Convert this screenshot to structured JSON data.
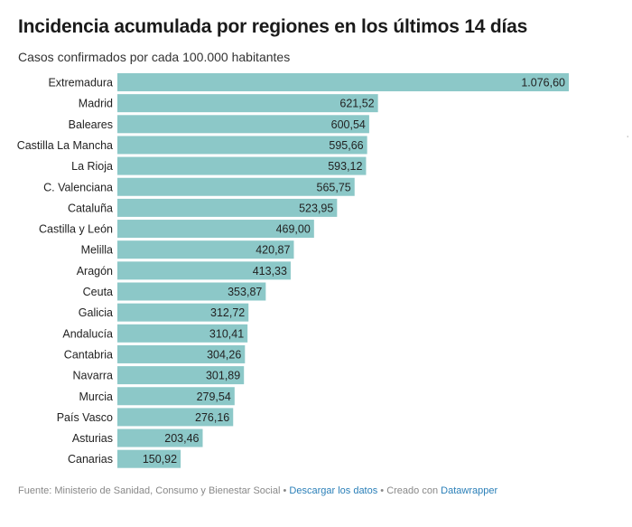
{
  "chart_data": {
    "type": "bar",
    "orientation": "horizontal",
    "title": "Incidencia acumulada por regiones en los últimos 14 días",
    "subtitle": "Casos confirmados por cada 100.000 habitantes",
    "categories": [
      "Extremadura",
      "Madrid",
      "Baleares",
      "Castilla La Mancha",
      "La Rioja",
      "C. Valenciana",
      "Cataluña",
      "Castilla y León",
      "Melilla",
      "Aragón",
      "Ceuta",
      "Galicia",
      "Andalucía",
      "Cantabria",
      "Navarra",
      "Murcia",
      "País Vasco",
      "Asturias",
      "Canarias"
    ],
    "values": [
      1076.6,
      621.52,
      600.54,
      595.66,
      593.12,
      565.75,
      523.95,
      469.0,
      420.87,
      413.33,
      353.87,
      312.72,
      310.41,
      304.26,
      301.89,
      279.54,
      276.16,
      203.46,
      150.92
    ],
    "value_labels": [
      "1.076,60",
      "621,52",
      "600,54",
      "595,66",
      "593,12",
      "565,75",
      "523,95",
      "469,00",
      "420,87",
      "413,33",
      "353,87",
      "312,72",
      "310,41",
      "304,26",
      "301,89",
      "279,54",
      "276,16",
      "203,46",
      "150,92"
    ],
    "xlim": [
      0,
      1076.6
    ],
    "bar_color": "#8cc8c8"
  },
  "footer": {
    "source": "Fuente: Ministerio de Sanidad, Consumo y Bienestar Social",
    "sep": " • ",
    "download_link": "Descargar los datos",
    "created": "Creado con ",
    "tool_link": "Datawrapper"
  }
}
